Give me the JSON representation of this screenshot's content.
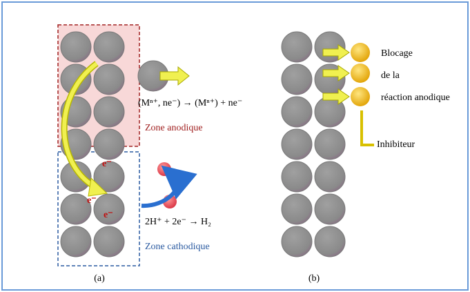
{
  "panel_a": {
    "reaction_anodic": "(Mⁿ⁺, ne⁻) → (Mⁿ⁺) + ne⁻",
    "zone_anodic": "Zone anodique",
    "electrons": [
      "e⁻",
      "e⁻",
      "e⁻"
    ],
    "reaction_cathodic": "2H⁺ + 2e⁻ → H₂",
    "zone_cathodic": "Zone cathodique",
    "label": "(a)"
  },
  "panel_b": {
    "blocking": [
      "Blocage",
      "de la",
      "réaction anodique"
    ],
    "inhibitor": "Inhibiteur",
    "label": "(b)"
  }
}
